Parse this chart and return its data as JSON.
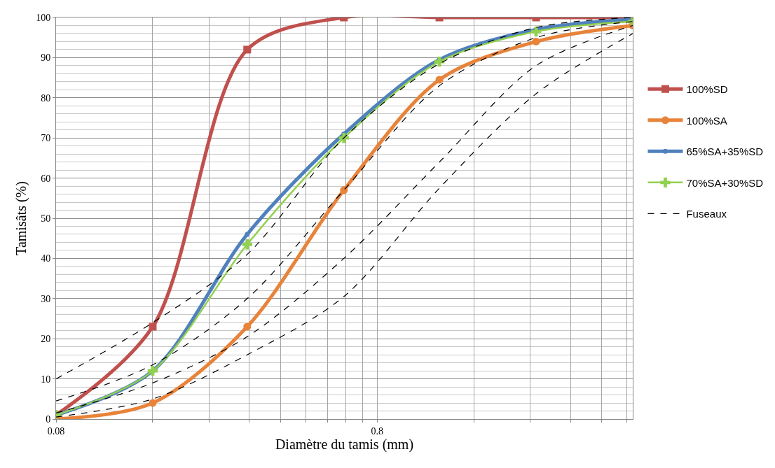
{
  "chart_data": {
    "type": "line",
    "xlabel": "Diamètre du tamis (mm)",
    "ylabel": "Tamisâts (%)",
    "x": [
      0.08,
      0.16,
      0.315,
      0.63,
      1.25,
      2.5,
      5
    ],
    "series": [
      {
        "name": "100%SD",
        "color": "#c0504d",
        "marker": "square",
        "values": [
          1,
          23,
          92,
          100,
          100,
          100,
          100
        ]
      },
      {
        "name": "100%SA",
        "color": "#e8833a",
        "marker": "circle",
        "values": [
          0,
          4,
          23,
          57,
          84.5,
          94,
          98
        ]
      },
      {
        "name": "65%SA+35%SD",
        "color": "#4f81bd",
        "marker": "circle",
        "values": [
          1,
          12,
          46,
          71,
          89.5,
          97,
          99.5
        ]
      },
      {
        "name": "70%SA+30%SD",
        "color": "#92d050",
        "marker": "cross",
        "values": [
          1,
          12,
          43.5,
          70,
          89,
          96.5,
          99
        ]
      },
      {
        "name": "Fuseaux",
        "color": "#000000",
        "marker": "none",
        "line_style": "dashed",
        "values": [
          10,
          24,
          41,
          70,
          88.5,
          97.5,
          100
        ]
      },
      {
        "color": "#000000",
        "marker": "none",
        "line_style": "dashed",
        "values": [
          4.5,
          13.5,
          30,
          57,
          83,
          95,
          99
        ]
      },
      {
        "color": "#000000",
        "marker": "none",
        "line_style": "dashed",
        "values": [
          1.5,
          9,
          20.5,
          40,
          64,
          88,
          98
        ]
      },
      {
        "color": "#000000",
        "marker": "none",
        "line_style": "dashed",
        "values": [
          0.5,
          5,
          16,
          30.5,
          57.5,
          81,
          96
        ]
      }
    ],
    "log": "x",
    "xlim": [
      0.08,
      5
    ],
    "xticks": [
      0.08,
      {
        "value": 0.16,
        "label": null
      },
      {
        "value": 0.24,
        "label": null
      },
      {
        "value": 0.32,
        "label": null
      },
      {
        "value": 0.4,
        "label": null
      },
      {
        "value": 0.48,
        "label": null
      },
      {
        "value": 0.56,
        "label": null
      },
      {
        "value": 0.64,
        "label": null
      },
      {
        "value": 0.72,
        "label": null
      },
      0.8,
      {
        "value": 1.6,
        "label": null
      },
      {
        "value": 2.4,
        "label": null
      },
      {
        "value": 3.2,
        "label": null
      },
      {
        "value": 4.0,
        "label": null
      },
      {
        "value": 4.8,
        "label": null
      }
    ],
    "ylim": [
      0,
      100
    ],
    "yticks": [
      0,
      10,
      20,
      30,
      40,
      50,
      60,
      70,
      80,
      90,
      100
    ],
    "grid": true,
    "legend": "right"
  }
}
